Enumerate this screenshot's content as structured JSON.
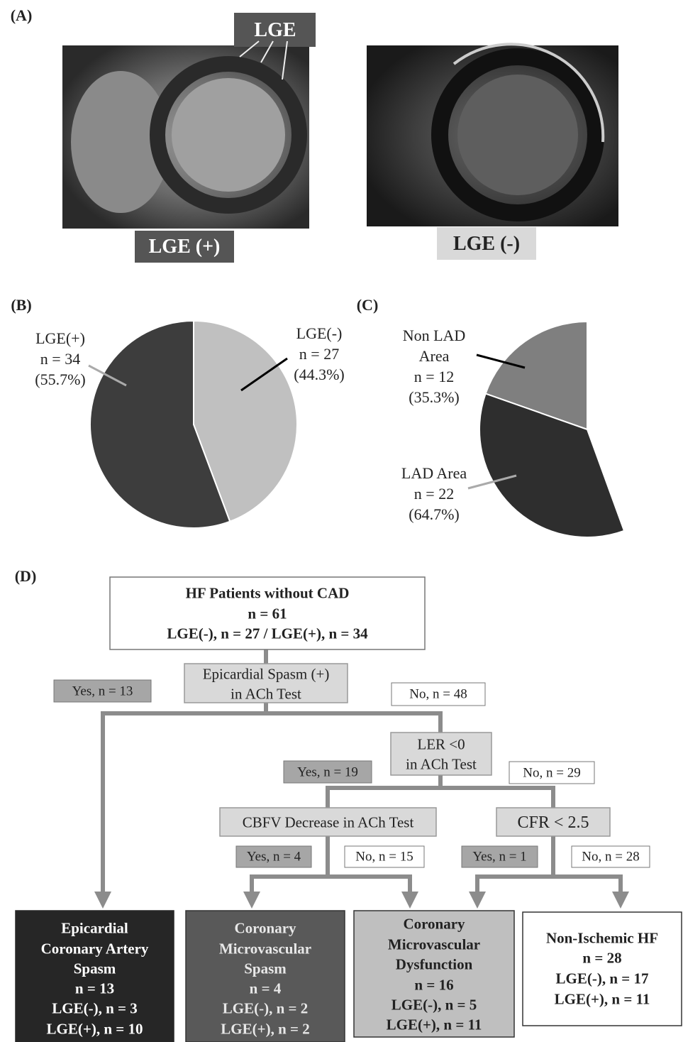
{
  "panel_a": {
    "label": "(A)",
    "arrow_label": "LGE",
    "left_label": "LGE (+)",
    "right_label": "LGE (-)"
  },
  "chart_data": [
    {
      "type": "pie",
      "panel": "(B)",
      "categories": [
        "LGE(-)",
        "LGE(+)"
      ],
      "counts": [
        "n = 27",
        "n = 34"
      ],
      "values": [
        44.3,
        55.7
      ],
      "value_labels": [
        "(44.3%)",
        "(55.7%)"
      ],
      "colors": [
        "#c0c0c0",
        "#3d3d3d"
      ]
    },
    {
      "type": "pie",
      "panel": "(C)",
      "categories": [
        "Non LAD Area",
        "LAD Area"
      ],
      "counts": [
        "n = 12",
        "n = 22"
      ],
      "values": [
        35.3,
        64.7
      ],
      "value_labels": [
        "(35.3%)",
        "(64.7%)"
      ],
      "colors": [
        "#7f7f7f",
        "#2e2e2e"
      ]
    }
  ],
  "flowchart": {
    "label": "(D)",
    "nodes": [
      {
        "lines": [
          "HF Patients without CAD",
          "n = 61",
          "LGE(-), n = 27 / LGE(+), n = 34"
        ]
      },
      {
        "lines": [
          "Epicardial Spasm (+)",
          "in ACh Test"
        ]
      },
      {
        "lines": [
          "LER <0",
          "in ACh Test"
        ]
      },
      {
        "lines": [
          "CBFV Decrease in ACh Test"
        ]
      },
      {
        "lines": [
          "CFR < 2.5"
        ]
      },
      {
        "lines": [
          "Epicardial",
          "Coronary Artery",
          "Spasm",
          "n = 13",
          "LGE(-), n = 3",
          "LGE(+), n = 10"
        ]
      },
      {
        "lines": [
          "Coronary",
          "Microvascular",
          "Spasm",
          "n = 4",
          "LGE(-), n = 2",
          "LGE(+), n = 2"
        ]
      },
      {
        "lines": [
          "Coronary",
          "Microvascular",
          "Dysfunction",
          "n = 16",
          "LGE(-), n = 5",
          "LGE(+), n = 11"
        ]
      },
      {
        "lines": [
          "Non-Ischemic HF",
          "n = 28",
          "LGE(-), n = 17",
          "LGE(+), n = 11"
        ]
      }
    ],
    "edge_labels": [
      "Yes, n = 13",
      "No, n = 48",
      "Yes, n = 19",
      "No, n = 29",
      "Yes, n = 4",
      "No, n = 15",
      "Yes, n = 1",
      "No, n = 28"
    ]
  }
}
